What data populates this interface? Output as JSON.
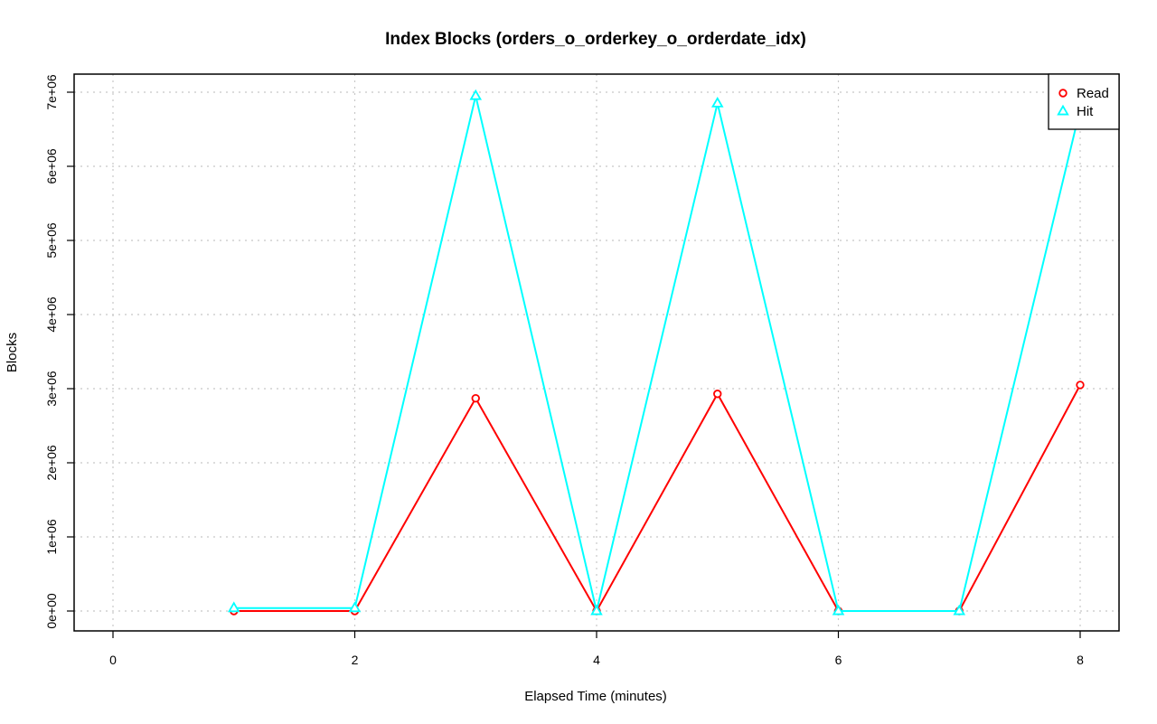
{
  "chart_data": {
    "type": "line",
    "title": "Index Blocks (orders_o_orderkey_o_orderdate_idx)",
    "xlabel": "Elapsed Time (minutes)",
    "ylabel": "Blocks",
    "xlim": [
      0,
      8
    ],
    "ylim": [
      0,
      7000000
    ],
    "xticks": [
      0,
      2,
      4,
      6,
      8
    ],
    "xtick_labels": [
      "0",
      "2",
      "4",
      "6",
      "8"
    ],
    "yticks": [
      0,
      1000000,
      2000000,
      3000000,
      4000000,
      5000000,
      6000000,
      7000000
    ],
    "ytick_labels": [
      "0e+00",
      "1e+06",
      "2e+06",
      "3e+06",
      "4e+06",
      "5e+06",
      "6e+06",
      "7e+06"
    ],
    "grid": true,
    "legend": "top-right",
    "x": [
      1,
      2,
      3,
      4,
      5,
      6,
      7,
      8
    ],
    "series": [
      {
        "name": "Read",
        "color": "#ff0000",
        "marker": "circle",
        "values": [
          0,
          0,
          2870000,
          0,
          2930000,
          0,
          0,
          3050000
        ]
      },
      {
        "name": "Hit",
        "color": "#00ffff",
        "marker": "triangle",
        "values": [
          40000,
          40000,
          6950000,
          0,
          6850000,
          0,
          0,
          6770000
        ]
      }
    ]
  }
}
